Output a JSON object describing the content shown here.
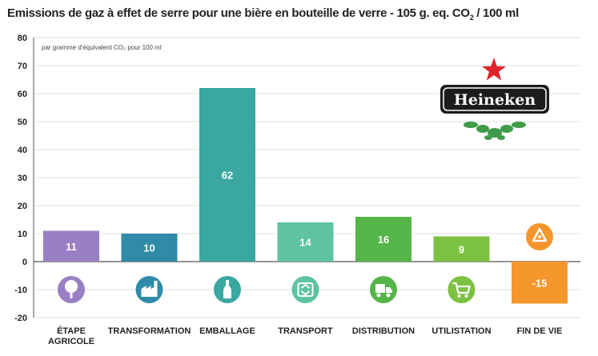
{
  "chart_data": {
    "type": "bar",
    "title_main": "Emissions de gaz à effet de serre pour une bière en bouteille de verre - 105 g. eq. CO",
    "title_sub": "2",
    "title_tail": " / 100 ml",
    "unit_note": "par gramme d'équivalent CO₂ pour 100 ml",
    "categories": [
      [
        "ÉTAPE",
        "AGRICOLE"
      ],
      [
        "TRANSFORMATION"
      ],
      [
        "EMBALLAGE"
      ],
      [
        "TRANSPORT"
      ],
      [
        "DISTRIBUTION"
      ],
      [
        "UTILISTATION"
      ],
      [
        "FIN DE VIE"
      ]
    ],
    "values": [
      11,
      10,
      62,
      14,
      16,
      9,
      -15
    ],
    "data_labels": [
      "11",
      "10",
      "62",
      "14",
      "16",
      "9",
      "-15"
    ],
    "colors": [
      "#9b7fc5",
      "#2f8ba8",
      "#3aa8a0",
      "#5ec3a0",
      "#55b548",
      "#7cc142",
      "#f5962d"
    ],
    "icons": [
      "tree-icon",
      "factory-icon",
      "bottle-icon",
      "recycle-box-icon",
      "truck-icon",
      "cart-icon",
      "recycle-icon"
    ],
    "ylim": [
      -20,
      80
    ],
    "yticks": [
      -20,
      -10,
      0,
      10,
      20,
      30,
      40,
      50,
      60,
      70,
      80
    ],
    "grid": true,
    "logo_text": "Heineken"
  }
}
